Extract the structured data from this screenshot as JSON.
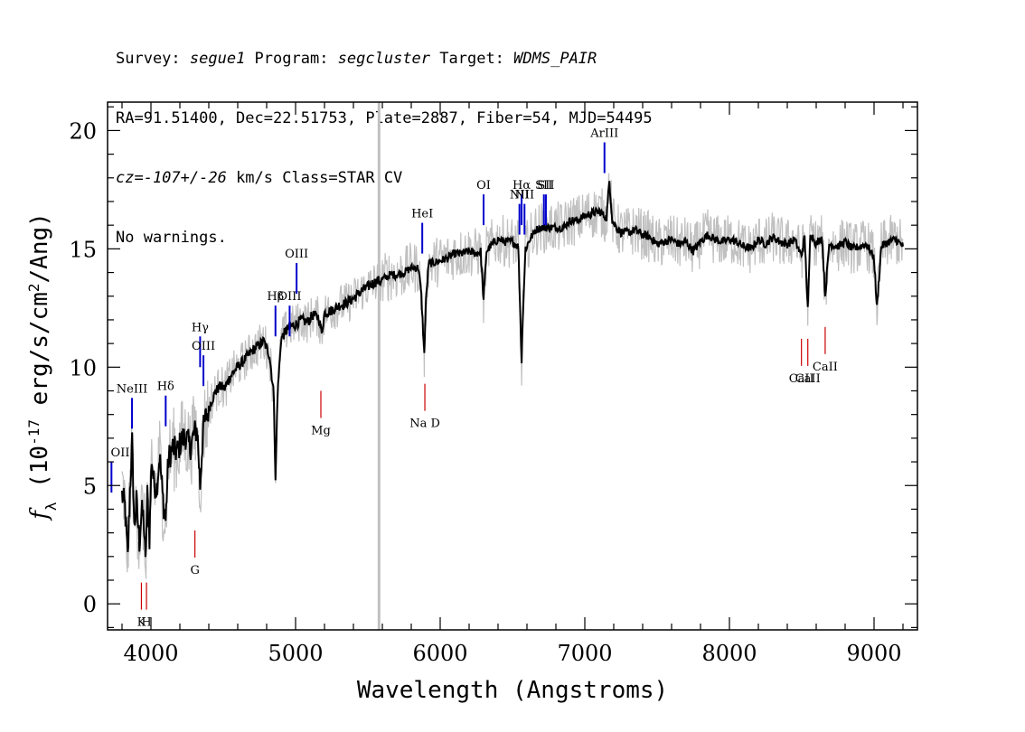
{
  "header": {
    "l1_p1": "Survey: ",
    "survey": "segue1",
    "l1_p2": " Program: ",
    "program": "segcluster",
    "l1_p3": " Target: ",
    "target": "WDMS_PAIR",
    "line2": "RA=91.51400, Dec=22.51753, Plate=2887, Fiber=54, MJD=54495",
    "cz": "cz=-107+/-26",
    "line3_rest": " km/s Class=STAR CV",
    "line4": "No warnings."
  },
  "chart_data": {
    "type": "line",
    "xlabel": "Wavelength (Angstroms)",
    "ylabel": "f_λ (10^-17 erg/s/cm^2/Ang)",
    "xlim": [
      3700,
      9300
    ],
    "ylim": [
      -1.1,
      21.2
    ],
    "xticks": [
      "4000",
      "5000",
      "6000",
      "7000",
      "8000",
      "9000"
    ],
    "yticks": [
      "0",
      "5",
      "10",
      "15",
      "20"
    ],
    "sky_line_wavelength": 5577,
    "colors": {
      "flux": "#000000",
      "noise": "#c0c0c0",
      "emission": "#0000cc",
      "absorption": "#cc0000",
      "sky": "#c0c0c0"
    },
    "series": [
      {
        "points": [
          [
            3800,
            4.6
          ],
          [
            3820,
            4.1
          ],
          [
            3840,
            1.9
          ],
          [
            3855,
            4.8
          ],
          [
            3870,
            6.8
          ],
          [
            3885,
            3.2
          ],
          [
            3900,
            4.3
          ],
          [
            3920,
            2.6
          ],
          [
            3935,
            3.9
          ],
          [
            3950,
            3.6
          ],
          [
            3962,
            1.6
          ],
          [
            3975,
            4.6
          ],
          [
            3990,
            2.8
          ],
          [
            4005,
            6.2
          ],
          [
            4020,
            5.1
          ],
          [
            4040,
            4.9
          ],
          [
            4060,
            6.3
          ],
          [
            4080,
            4.6
          ],
          [
            4101,
            3.5
          ],
          [
            4120,
            6.1
          ],
          [
            4150,
            6.6
          ],
          [
            4180,
            6.4
          ],
          [
            4210,
            6.9
          ],
          [
            4240,
            7.1
          ],
          [
            4270,
            6.6
          ],
          [
            4300,
            7.2
          ],
          [
            4320,
            7.4
          ],
          [
            4340,
            5.0
          ],
          [
            4360,
            7.3
          ],
          [
            4380,
            7.9
          ],
          [
            4400,
            8.2
          ],
          [
            4420,
            8.6
          ],
          [
            4450,
            9.0
          ],
          [
            4480,
            9.2
          ],
          [
            4510,
            9.1
          ],
          [
            4540,
            9.5
          ],
          [
            4570,
            9.8
          ],
          [
            4600,
            10.0
          ],
          [
            4630,
            10.2
          ],
          [
            4660,
            10.4
          ],
          [
            4700,
            10.7
          ],
          [
            4740,
            10.9
          ],
          [
            4780,
            11.1
          ],
          [
            4820,
            10.5
          ],
          [
            4850,
            8.8
          ],
          [
            4861,
            5.1
          ],
          [
            4875,
            8.8
          ],
          [
            4900,
            11.2
          ],
          [
            4930,
            11.5
          ],
          [
            4960,
            11.7
          ],
          [
            5000,
            11.8
          ],
          [
            5040,
            12.0
          ],
          [
            5080,
            11.9
          ],
          [
            5120,
            12.2
          ],
          [
            5160,
            12.1
          ],
          [
            5180,
            11.4
          ],
          [
            5200,
            12.3
          ],
          [
            5250,
            12.4
          ],
          [
            5300,
            12.6
          ],
          [
            5350,
            12.7
          ],
          [
            5400,
            12.9
          ],
          [
            5450,
            13.2
          ],
          [
            5500,
            13.4
          ],
          [
            5550,
            13.6
          ],
          [
            5600,
            13.7
          ],
          [
            5650,
            13.9
          ],
          [
            5700,
            13.9
          ],
          [
            5750,
            14.0
          ],
          [
            5800,
            14.2
          ],
          [
            5850,
            14.2
          ],
          [
            5870,
            13.0
          ],
          [
            5890,
            10.5
          ],
          [
            5900,
            12.6
          ],
          [
            5920,
            14.4
          ],
          [
            5950,
            14.4
          ],
          [
            6000,
            14.5
          ],
          [
            6050,
            14.6
          ],
          [
            6100,
            14.8
          ],
          [
            6150,
            14.8
          ],
          [
            6200,
            14.9
          ],
          [
            6250,
            14.8
          ],
          [
            6280,
            14.9
          ],
          [
            6300,
            12.8
          ],
          [
            6320,
            14.9
          ],
          [
            6360,
            15.2
          ],
          [
            6400,
            15.4
          ],
          [
            6450,
            15.3
          ],
          [
            6500,
            15.3
          ],
          [
            6540,
            15.1
          ],
          [
            6555,
            12.0
          ],
          [
            6563,
            10.2
          ],
          [
            6572,
            12.3
          ],
          [
            6590,
            15.0
          ],
          [
            6620,
            15.4
          ],
          [
            6660,
            15.8
          ],
          [
            6700,
            15.9
          ],
          [
            6750,
            15.9
          ],
          [
            6800,
            15.9
          ],
          [
            6850,
            15.9
          ],
          [
            6900,
            16.2
          ],
          [
            6950,
            16.2
          ],
          [
            7000,
            16.4
          ],
          [
            7050,
            16.5
          ],
          [
            7100,
            16.6
          ],
          [
            7150,
            16.3
          ],
          [
            7170,
            17.9
          ],
          [
            7190,
            16.2
          ],
          [
            7220,
            15.9
          ],
          [
            7250,
            15.7
          ],
          [
            7300,
            15.7
          ],
          [
            7350,
            15.8
          ],
          [
            7400,
            15.6
          ],
          [
            7450,
            15.5
          ],
          [
            7500,
            15.2
          ],
          [
            7550,
            15.3
          ],
          [
            7600,
            15.4
          ],
          [
            7650,
            15.2
          ],
          [
            7700,
            15.3
          ],
          [
            7750,
            14.9
          ],
          [
            7800,
            15.3
          ],
          [
            7850,
            15.6
          ],
          [
            7900,
            15.4
          ],
          [
            7950,
            15.3
          ],
          [
            8000,
            15.4
          ],
          [
            8050,
            15.3
          ],
          [
            8100,
            15.1
          ],
          [
            8150,
            15.0
          ],
          [
            8200,
            15.4
          ],
          [
            8250,
            15.2
          ],
          [
            8300,
            15.5
          ],
          [
            8350,
            15.3
          ],
          [
            8400,
            15.2
          ],
          [
            8450,
            15.4
          ],
          [
            8498,
            14.7
          ],
          [
            8520,
            15.5
          ],
          [
            8542,
            12.4
          ],
          [
            8560,
            15.7
          ],
          [
            8600,
            15.2
          ],
          [
            8640,
            15.5
          ],
          [
            8662,
            13.0
          ],
          [
            8690,
            15.2
          ],
          [
            8750,
            15.1
          ],
          [
            8800,
            15.3
          ],
          [
            8850,
            15.0
          ],
          [
            8900,
            15.1
          ],
          [
            8950,
            15.2
          ],
          [
            9000,
            14.6
          ],
          [
            9020,
            12.5
          ],
          [
            9050,
            15.1
          ],
          [
            9100,
            15.3
          ],
          [
            9150,
            15.4
          ],
          [
            9200,
            15.1
          ]
        ]
      }
    ],
    "emission_lines": [
      {
        "label": "OII",
        "wavelength": 3727,
        "y": 6.0
      },
      {
        "label": "NeIII",
        "wavelength": 3869,
        "y": 8.7
      },
      {
        "label": "Hδ",
        "wavelength": 4102,
        "y": 8.8
      },
      {
        "label": "Hγ",
        "wavelength": 4340,
        "y": 11.3
      },
      {
        "label": "OIII",
        "wavelength": 4363,
        "y": 10.5
      },
      {
        "label": "Hβ",
        "wavelength": 4861,
        "y": 12.6
      },
      {
        "label": "OIII",
        "wavelength": 4959,
        "y": 12.6
      },
      {
        "label": "OIII",
        "wavelength": 5007,
        "y": 14.4
      },
      {
        "label": "HeI",
        "wavelength": 5876,
        "y": 16.1
      },
      {
        "label": "OI",
        "wavelength": 6300,
        "y": 17.3
      },
      {
        "label": "NII",
        "wavelength": 6548,
        "y": 16.9
      },
      {
        "label": "Hα",
        "wavelength": 6563,
        "y": 17.3
      },
      {
        "label": "NII",
        "wavelength": 6583,
        "y": 16.9
      },
      {
        "label": "SII",
        "wavelength": 6717,
        "y": 17.3
      },
      {
        "label": "SII",
        "wavelength": 6731,
        "y": 17.3
      },
      {
        "label": "ArIII",
        "wavelength": 7136,
        "y": 19.5
      }
    ],
    "absorption_lines": [
      {
        "label": "K",
        "wavelength": 3934,
        "y": 0.9
      },
      {
        "label": "H",
        "wavelength": 3969,
        "y": 0.9
      },
      {
        "label": "G",
        "wavelength": 4304,
        "y": 3.1
      },
      {
        "label": "Mg",
        "wavelength": 5175,
        "y": 9.0
      },
      {
        "label": "Na D",
        "wavelength": 5894,
        "y": 9.3
      },
      {
        "label": "CaII",
        "wavelength": 8498,
        "y": 11.2
      },
      {
        "label": "CaII",
        "wavelength": 8542,
        "y": 11.2
      },
      {
        "label": "CaII",
        "wavelength": 8662,
        "y": 11.7
      }
    ]
  }
}
